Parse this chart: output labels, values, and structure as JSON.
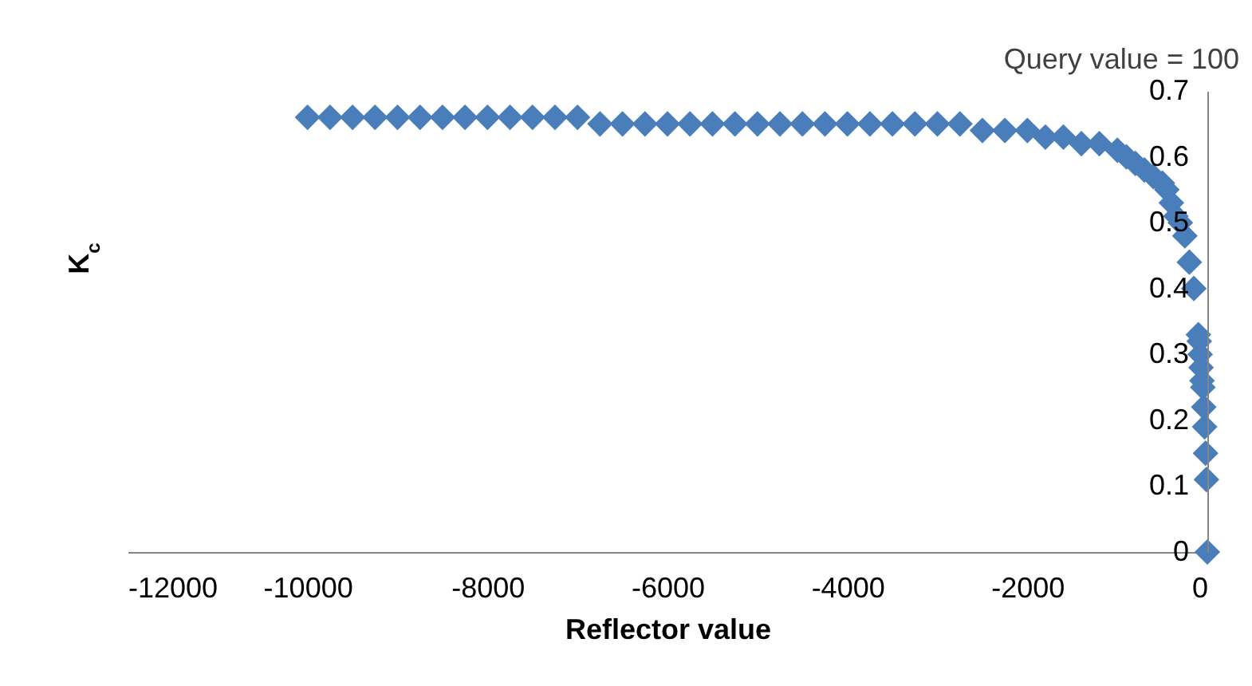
{
  "chart_data": {
    "type": "scatter",
    "xlabel": "Reflector value",
    "ylabel": "K$_{c}$",
    "annotations": [
      "Query value = 100"
    ],
    "x": [
      -10000,
      -9750,
      -9500,
      -9250,
      -9000,
      -8750,
      -8500,
      -8250,
      -8000,
      -7750,
      -7500,
      -7250,
      -7000,
      -6750,
      -6500,
      -6250,
      -6000,
      -5750,
      -5500,
      -5250,
      -5000,
      -4750,
      -4500,
      -4250,
      -4000,
      -3750,
      -3500,
      -3250,
      -3000,
      -2750,
      -2500,
      -2250,
      -2000,
      -1800,
      -1600,
      -1400,
      -1200,
      -1000,
      -900,
      -800,
      -700,
      -600,
      -500,
      -450,
      -400,
      -350,
      -300,
      -250,
      -200,
      -150,
      -100,
      -90,
      -80,
      -70,
      -60,
      -50,
      -40,
      -30,
      -20,
      -10,
      0
    ],
    "series": [
      {
        "color": "#4a7ebb",
        "values": [
          0.66,
          0.66,
          0.66,
          0.66,
          0.66,
          0.66,
          0.66,
          0.66,
          0.66,
          0.66,
          0.66,
          0.66,
          0.66,
          0.65,
          0.65,
          0.65,
          0.65,
          0.65,
          0.65,
          0.65,
          0.65,
          0.65,
          0.65,
          0.65,
          0.65,
          0.65,
          0.65,
          0.65,
          0.65,
          0.65,
          0.64,
          0.64,
          0.64,
          0.63,
          0.63,
          0.62,
          0.62,
          0.61,
          0.6,
          0.59,
          0.58,
          0.57,
          0.56,
          0.55,
          0.53,
          0.51,
          0.5,
          0.48,
          0.44,
          0.4,
          0.33,
          0.32,
          0.3,
          0.28,
          0.26,
          0.25,
          0.22,
          0.19,
          0.15,
          0.11,
          0
        ]
      }
    ],
    "xlim": [
      -12000,
      0
    ],
    "xticks": [
      {
        "value": -12000,
        "label": "-12000"
      },
      {
        "value": -10000,
        "label": "-10000"
      },
      {
        "value": -8000,
        "label": "-8000"
      },
      {
        "value": -6000,
        "label": "-6000"
      },
      {
        "value": -4000,
        "label": "-4000"
      },
      {
        "value": -2000,
        "label": "-2000"
      },
      0
    ],
    "ylim": [
      0,
      0.7
    ],
    "yticks": [
      0,
      0.1,
      0.2,
      0.3,
      0.4,
      0.5,
      0.6,
      0.7
    ],
    "marker": "diamond",
    "grid": false,
    "legend": false
  }
}
